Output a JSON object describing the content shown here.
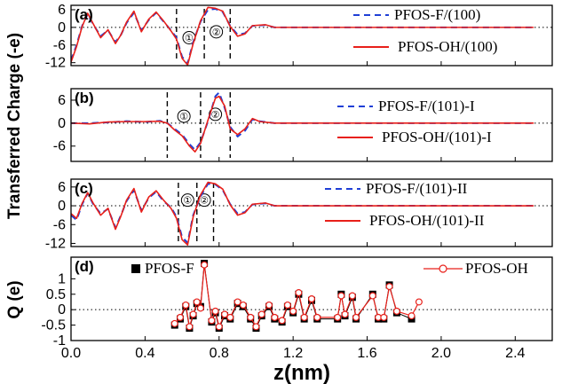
{
  "chart_data": {
    "type": "line",
    "xlabel": "z(nm)",
    "xlim": [
      0.0,
      2.6
    ],
    "x_ticks": [
      "0.0",
      "0.4",
      "0.8",
      "1.2",
      "1.6",
      "2.0",
      "2.4"
    ],
    "shared_ylabel": "Transferred Charge (-e)",
    "colors": {
      "F": "#1f3fd6",
      "OH": "#e8201a",
      "d_F": "#000000",
      "d_OH": "#e8201a"
    },
    "panels": [
      {
        "label": "(a)",
        "ylim": [
          -13,
          7.5
        ],
        "y_ticks": [
          6,
          0,
          -6,
          -12
        ],
        "y_tick_labels": [
          "6",
          "0",
          "-6",
          "-12"
        ],
        "region_lines_x": [
          0.57,
          0.72,
          0.86
        ],
        "regions": [
          {
            "label": "①",
            "x": 0.638,
            "y": -3.5
          },
          {
            "label": "②",
            "x": 0.785,
            "y": -1.5
          }
        ],
        "legend": [
          "PFOS-F/(100)",
          "PFOS-OH/(100)"
        ],
        "series": [
          {
            "name": "PFOS-F/(100)",
            "style": "dashed",
            "x": [
              0.0,
              0.03,
              0.06,
              0.09,
              0.12,
              0.16,
              0.2,
              0.24,
              0.27,
              0.3,
              0.34,
              0.38,
              0.42,
              0.46,
              0.5,
              0.54,
              0.57,
              0.6,
              0.63,
              0.66,
              0.7,
              0.74,
              0.78,
              0.82,
              0.86,
              0.9,
              0.94,
              0.98,
              1.05,
              1.1,
              1.2,
              1.4,
              1.6,
              2.0,
              2.5
            ],
            "y": [
              -11.2,
              -6,
              0.5,
              4.5,
              1,
              -3,
              -1,
              -5,
              -2.5,
              1.5,
              5,
              -1,
              2.5,
              5,
              2,
              -1,
              -3.5,
              -10,
              -12.3,
              -5,
              2,
              6,
              6.3,
              5.2,
              0.5,
              -2.5,
              -2,
              0.5,
              0.8,
              0,
              0,
              0,
              0,
              0,
              0
            ]
          },
          {
            "name": "PFOS-OH/(100)",
            "style": "solid",
            "x": [
              0.0,
              0.03,
              0.06,
              0.09,
              0.12,
              0.16,
              0.2,
              0.24,
              0.27,
              0.3,
              0.34,
              0.38,
              0.42,
              0.46,
              0.5,
              0.54,
              0.57,
              0.6,
              0.63,
              0.66,
              0.7,
              0.74,
              0.78,
              0.82,
              0.86,
              0.9,
              0.94,
              0.98,
              1.05,
              1.1,
              1.2,
              1.4,
              1.6,
              2.0,
              2.5
            ],
            "y": [
              -11.8,
              -6.5,
              0.3,
              4.8,
              1.2,
              -3.5,
              -0.8,
              -5.5,
              -2.5,
              1.8,
              5.5,
              -1.5,
              2.8,
              5.2,
              2.2,
              -1.2,
              -4,
              -10.5,
              -12.8,
              -5.5,
              2.3,
              6.8,
              6.5,
              5.5,
              0.3,
              -3,
              -2.2,
              0.6,
              0.9,
              0,
              0,
              0,
              0,
              0,
              0
            ]
          }
        ]
      },
      {
        "label": "(b)",
        "ylim": [
          -10,
          9
        ],
        "y_ticks": [
          6,
          0,
          -6
        ],
        "y_tick_labels": [
          "6",
          "0",
          "-6"
        ],
        "region_lines_x": [
          0.52,
          0.7,
          0.86
        ],
        "regions": [
          {
            "label": "①",
            "x": 0.61,
            "y": 1.8
          },
          {
            "label": "②",
            "x": 0.78,
            "y": 2.3
          }
        ],
        "legend": [
          "PFOS-F/(101)-I",
          "PFOS-OH/(101)-I"
        ],
        "series": [
          {
            "name": "PFOS-F/(101)-I",
            "style": "dashed",
            "x": [
              0.0,
              0.1,
              0.2,
              0.3,
              0.4,
              0.48,
              0.52,
              0.56,
              0.6,
              0.64,
              0.67,
              0.7,
              0.74,
              0.78,
              0.8,
              0.83,
              0.86,
              0.9,
              0.94,
              0.98,
              1.02,
              1.1,
              1.3,
              1.6,
              2.0,
              2.5
            ],
            "y": [
              0,
              0,
              0.2,
              0.5,
              0.3,
              0.6,
              0,
              -1.5,
              -3,
              -5.5,
              -7,
              -5,
              0.5,
              7,
              8,
              4,
              -1,
              -3.5,
              -2,
              1,
              0.5,
              0,
              0,
              0,
              0,
              0
            ]
          },
          {
            "name": "PFOS-OH/(101)-I",
            "style": "solid",
            "x": [
              0.0,
              0.1,
              0.2,
              0.3,
              0.4,
              0.48,
              0.52,
              0.56,
              0.6,
              0.64,
              0.67,
              0.7,
              0.74,
              0.78,
              0.8,
              0.83,
              0.86,
              0.9,
              0.94,
              0.98,
              1.02,
              1.1,
              1.3,
              1.6,
              2.0,
              2.5
            ],
            "y": [
              0,
              -0.2,
              0.3,
              0.4,
              0.4,
              0.5,
              0,
              -1.8,
              -3.3,
              -6,
              -7.5,
              -5.3,
              0.8,
              6.5,
              7,
              4.5,
              -1.5,
              -3,
              -1.5,
              1.2,
              0.4,
              0,
              0,
              0,
              0,
              0
            ]
          }
        ]
      },
      {
        "label": "(c)",
        "ylim": [
          -13,
          8.5
        ],
        "y_ticks": [
          6,
          0,
          -6,
          -12
        ],
        "y_tick_labels": [
          "6",
          "0",
          "-6",
          "-12"
        ],
        "region_lines_x": [
          0.58,
          0.68,
          0.77
        ],
        "regions": [
          {
            "label": "①",
            "x": 0.63,
            "y": 1.8
          },
          {
            "label": "②",
            "x": 0.72,
            "y": 1.8
          }
        ],
        "legend": [
          "PFOS-F/(101)-II",
          "PFOS-OH/(101)-II"
        ],
        "series": [
          {
            "name": "PFOS-F/(101)-II",
            "style": "dashed",
            "x": [
              0.0,
              0.03,
              0.06,
              0.09,
              0.12,
              0.16,
              0.2,
              0.24,
              0.27,
              0.3,
              0.34,
              0.38,
              0.42,
              0.46,
              0.5,
              0.54,
              0.57,
              0.6,
              0.63,
              0.66,
              0.7,
              0.74,
              0.78,
              0.82,
              0.86,
              0.9,
              0.94,
              0.98,
              1.05,
              1.1,
              1.2,
              1.4,
              1.6,
              2.0,
              2.5
            ],
            "y": [
              -3,
              -4.5,
              0.5,
              4,
              0.5,
              -2.5,
              -1,
              -7,
              -3,
              1.5,
              5,
              -1.5,
              2.5,
              4.5,
              1.5,
              -0.5,
              -3.5,
              -10,
              -11.8,
              -3,
              3,
              7,
              6.8,
              5,
              0.5,
              -2.5,
              -2,
              0.4,
              0.8,
              0,
              0,
              0,
              0,
              0,
              0
            ]
          },
          {
            "name": "PFOS-OH/(101)-II",
            "style": "solid",
            "x": [
              0.0,
              0.03,
              0.06,
              0.09,
              0.12,
              0.16,
              0.2,
              0.24,
              0.27,
              0.3,
              0.34,
              0.38,
              0.42,
              0.46,
              0.5,
              0.54,
              0.57,
              0.6,
              0.63,
              0.66,
              0.7,
              0.74,
              0.78,
              0.82,
              0.86,
              0.9,
              0.94,
              0.98,
              1.05,
              1.1,
              1.2,
              1.4,
              1.6,
              2.0,
              2.5
            ],
            "y": [
              -2.5,
              -4,
              0.8,
              4.2,
              0.8,
              -3,
              -0.8,
              -7.5,
              -3.2,
              1.8,
              5.5,
              -2,
              2.8,
              4.8,
              1.8,
              -0.8,
              -4,
              -10.8,
              -12.5,
              -3.5,
              3.5,
              7.5,
              7,
              5.3,
              0.3,
              -3,
              -2.2,
              0.5,
              0.9,
              0,
              0,
              0,
              0,
              0,
              0
            ]
          }
        ]
      },
      {
        "label": "(d)",
        "ylabel": "Q (e)",
        "ylim": [
          -1,
          1.7
        ],
        "y_ticks": [
          1,
          0.5,
          0,
          -0.5,
          -1
        ],
        "y_tick_labels": [
          "1",
          "0.5",
          "0",
          "-0.5",
          "-1"
        ],
        "legend": [
          "PFOS-F",
          "PFOS-OH"
        ],
        "series": [
          {
            "name": "PFOS-F",
            "style": "square",
            "x": [
              0.56,
              0.59,
              0.62,
              0.64,
              0.66,
              0.68,
              0.7,
              0.72,
              0.76,
              0.78,
              0.8,
              0.83,
              0.86,
              0.9,
              0.93,
              0.97,
              1.0,
              1.03,
              1.07,
              1.1,
              1.14,
              1.17,
              1.2,
              1.23,
              1.26,
              1.3,
              1.33,
              1.44,
              1.46,
              1.48,
              1.52,
              1.54,
              1.63,
              1.66,
              1.69,
              1.72,
              1.76,
              1.84
            ],
            "y": [
              -0.5,
              -0.3,
              0.1,
              -0.6,
              -0.2,
              0.2,
              0.1,
              1.5,
              -0.4,
              -0.1,
              -0.6,
              -0.2,
              -0.3,
              0.2,
              0.1,
              -0.3,
              -0.6,
              -0.2,
              0.1,
              -0.3,
              -0.4,
              0.1,
              -0.1,
              0.5,
              -0.3,
              0.3,
              -0.3,
              -0.3,
              0.5,
              -0.2,
              0.4,
              -0.3,
              0.5,
              -0.3,
              -0.3,
              0.8,
              -0.1,
              -0.3
            ]
          },
          {
            "name": "PFOS-OH",
            "style": "circle",
            "x": [
              0.56,
              0.59,
              0.62,
              0.64,
              0.66,
              0.68,
              0.7,
              0.72,
              0.76,
              0.78,
              0.8,
              0.83,
              0.86,
              0.9,
              0.93,
              0.97,
              1.0,
              1.03,
              1.07,
              1.1,
              1.14,
              1.17,
              1.2,
              1.23,
              1.26,
              1.3,
              1.33,
              1.44,
              1.46,
              1.48,
              1.52,
              1.54,
              1.63,
              1.66,
              1.69,
              1.72,
              1.76,
              1.84,
              1.88
            ],
            "y": [
              -0.45,
              -0.25,
              0.15,
              -0.55,
              -0.15,
              0.25,
              0.05,
              1.45,
              -0.35,
              -0.05,
              -0.55,
              -0.15,
              -0.25,
              0.25,
              0.15,
              -0.25,
              -0.55,
              -0.15,
              0.15,
              -0.25,
              -0.35,
              0.15,
              -0.05,
              0.55,
              -0.25,
              0.35,
              -0.25,
              -0.25,
              0.45,
              -0.15,
              0.45,
              -0.25,
              0.45,
              -0.25,
              -0.25,
              0.75,
              -0.05,
              -0.2,
              0.25
            ]
          }
        ]
      }
    ]
  }
}
